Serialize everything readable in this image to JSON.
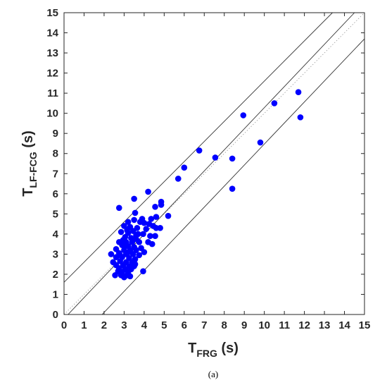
{
  "chart_data": {
    "type": "scatter",
    "xlabel_main": "T",
    "xlabel_sub": "FRG",
    "xlabel_unit": " (s)",
    "ylabel_main": "T",
    "ylabel_sub": "LF-FCG",
    "ylabel_unit": " (s)",
    "caption": "(a)",
    "xlim": [
      0,
      15
    ],
    "ylim": [
      0,
      15
    ],
    "xticks": [
      "0",
      "1",
      "2",
      "3",
      "4",
      "5",
      "6",
      "7",
      "8",
      "9",
      "10",
      "11",
      "12",
      "13",
      "14",
      "15"
    ],
    "yticks": [
      "0",
      "1",
      "2",
      "3",
      "4",
      "5",
      "6",
      "7",
      "8",
      "9",
      "10",
      "11",
      "12",
      "13",
      "14",
      "15"
    ],
    "grid": false,
    "point_color": "#0000ff",
    "lines": [
      {
        "kind": "solid",
        "x": [
          0,
          13.4
        ],
        "y": [
          1.6,
          15
        ]
      },
      {
        "kind": "solid",
        "x": [
          0.2,
          14.5
        ],
        "y": [
          0,
          15
        ]
      },
      {
        "kind": "dotted",
        "x": [
          0,
          15
        ],
        "y": [
          0,
          15
        ]
      },
      {
        "kind": "solid",
        "x": [
          1.9,
          15
        ],
        "y": [
          0,
          13.7
        ]
      }
    ],
    "points": [
      [
        11.7,
        11.05
      ],
      [
        10.5,
        10.5
      ],
      [
        8.95,
        9.9
      ],
      [
        11.8,
        9.8
      ],
      [
        9.8,
        8.55
      ],
      [
        6.75,
        8.15
      ],
      [
        7.55,
        7.8
      ],
      [
        8.4,
        7.75
      ],
      [
        6.0,
        7.3
      ],
      [
        5.7,
        6.75
      ],
      [
        8.4,
        6.25
      ],
      [
        4.2,
        6.1
      ],
      [
        3.5,
        5.75
      ],
      [
        4.85,
        5.6
      ],
      [
        4.85,
        5.45
      ],
      [
        2.75,
        5.3
      ],
      [
        4.55,
        5.35
      ],
      [
        3.55,
        5.05
      ],
      [
        5.2,
        4.9
      ],
      [
        4.6,
        4.85
      ],
      [
        4.35,
        4.75
      ],
      [
        3.2,
        4.6
      ],
      [
        3.5,
        4.7
      ],
      [
        3.8,
        4.6
      ],
      [
        4.0,
        4.55
      ],
      [
        4.25,
        4.5
      ],
      [
        4.45,
        4.4
      ],
      [
        3.0,
        4.4
      ],
      [
        3.3,
        4.35
      ],
      [
        3.65,
        4.3
      ],
      [
        4.1,
        4.25
      ],
      [
        4.6,
        4.3
      ],
      [
        4.8,
        4.3
      ],
      [
        2.85,
        4.1
      ],
      [
        3.2,
        4.05
      ],
      [
        3.45,
        4.15
      ],
      [
        3.7,
        4.0
      ],
      [
        3.95,
        4.0
      ],
      [
        4.3,
        3.9
      ],
      [
        4.55,
        3.9
      ],
      [
        3.05,
        3.85
      ],
      [
        3.35,
        3.8
      ],
      [
        3.6,
        3.75
      ],
      [
        2.75,
        3.6
      ],
      [
        3.1,
        3.6
      ],
      [
        3.4,
        3.6
      ],
      [
        3.75,
        3.6
      ],
      [
        4.2,
        3.6
      ],
      [
        4.4,
        3.5
      ],
      [
        2.9,
        3.45
      ],
      [
        3.2,
        3.4
      ],
      [
        3.5,
        3.35
      ],
      [
        3.85,
        3.3
      ],
      [
        2.6,
        3.25
      ],
      [
        3.0,
        3.2
      ],
      [
        3.3,
        3.2
      ],
      [
        3.6,
        3.2
      ],
      [
        4.0,
        3.1
      ],
      [
        2.35,
        3.0
      ],
      [
        2.75,
        3.05
      ],
      [
        3.1,
        3.0
      ],
      [
        3.45,
        3.0
      ],
      [
        3.75,
        2.95
      ],
      [
        2.6,
        2.85
      ],
      [
        2.9,
        2.85
      ],
      [
        3.25,
        2.8
      ],
      [
        3.55,
        2.75
      ],
      [
        2.45,
        2.6
      ],
      [
        2.8,
        2.65
      ],
      [
        3.1,
        2.6
      ],
      [
        3.4,
        2.6
      ],
      [
        2.6,
        2.45
      ],
      [
        2.95,
        2.45
      ],
      [
        3.25,
        2.4
      ],
      [
        3.55,
        2.5
      ],
      [
        2.75,
        2.3
      ],
      [
        3.05,
        2.25
      ],
      [
        3.35,
        2.25
      ],
      [
        2.9,
        2.1
      ],
      [
        3.2,
        2.1
      ],
      [
        3.95,
        2.15
      ],
      [
        2.55,
        1.95
      ],
      [
        2.85,
        1.95
      ],
      [
        3.15,
        1.95
      ],
      [
        3.0,
        1.85
      ],
      [
        3.3,
        1.9
      ],
      [
        2.7,
        2.15
      ],
      [
        3.1,
        3.45
      ],
      [
        3.6,
        3.95
      ],
      [
        3.9,
        4.75
      ],
      [
        3.15,
        4.2
      ],
      [
        2.95,
        3.7
      ],
      [
        3.25,
        3.1
      ],
      [
        3.5,
        2.4
      ],
      [
        2.8,
        2.95
      ]
    ]
  }
}
